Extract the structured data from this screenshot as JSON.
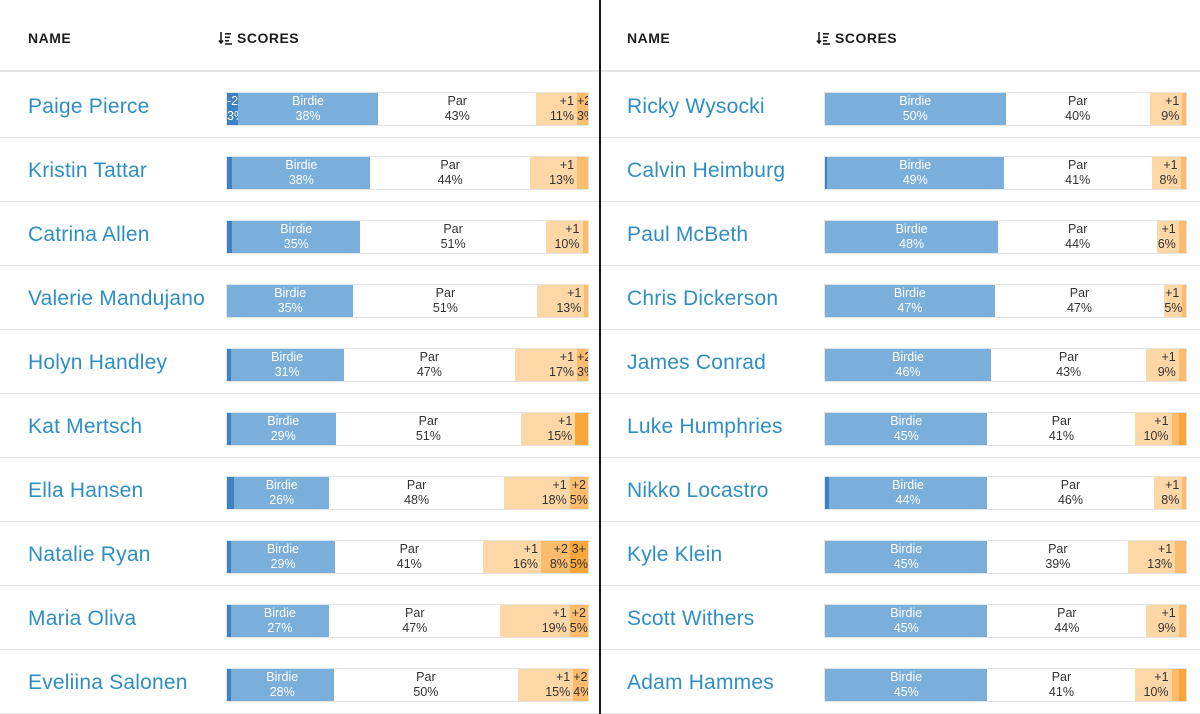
{
  "columns": {
    "name": "NAME",
    "scores": "SCORES"
  },
  "colors": {
    "name": "#2f8fc5",
    "eagle": "#3f82c4",
    "birdie": "#7aaedb",
    "par": "#ffffff",
    "bogey": "#fdd7a6",
    "double": "#fbbd6d",
    "triple": "#f9a73a"
  },
  "panels": [
    {
      "rows": [
        {
          "name": "Paige Pierce",
          "segs": [
            {
              "k": "eagle",
              "l1": "-2",
              "l2": "3%",
              "v": 3
            },
            {
              "k": "birdie",
              "l1": "Birdie",
              "l2": "38%",
              "v": 38
            },
            {
              "k": "par",
              "l1": "Par",
              "l2": "43%",
              "v": 43
            },
            {
              "k": "bogey",
              "l1": "+1",
              "l2": "11%",
              "v": 11
            },
            {
              "k": "dbl",
              "l1": "+2",
              "l2": "3%",
              "v": 3
            }
          ]
        },
        {
          "name": "Kristin Tattar",
          "segs": [
            {
              "k": "eagle",
              "l1": "",
              "l2": "",
              "v": 1.5
            },
            {
              "k": "birdie",
              "l1": "Birdie",
              "l2": "38%",
              "v": 38
            },
            {
              "k": "par",
              "l1": "Par",
              "l2": "44%",
              "v": 44
            },
            {
              "k": "bogey",
              "l1": "+1",
              "l2": "13%",
              "v": 13
            },
            {
              "k": "dbl",
              "l1": "",
              "l2": "",
              "v": 3
            }
          ]
        },
        {
          "name": "Catrina Allen",
          "segs": [
            {
              "k": "eagle",
              "l1": "",
              "l2": "",
              "v": 1.5
            },
            {
              "k": "birdie",
              "l1": "Birdie",
              "l2": "35%",
              "v": 35
            },
            {
              "k": "par",
              "l1": "Par",
              "l2": "51%",
              "v": 51
            },
            {
              "k": "bogey",
              "l1": "+1",
              "l2": "10%",
              "v": 10
            },
            {
              "k": "dbl",
              "l1": "",
              "l2": "",
              "v": 1.5
            }
          ]
        },
        {
          "name": "Valerie Mandujano",
          "segs": [
            {
              "k": "birdie",
              "l1": "Birdie",
              "l2": "35%",
              "v": 35
            },
            {
              "k": "par",
              "l1": "Par",
              "l2": "51%",
              "v": 51
            },
            {
              "k": "bogey",
              "l1": "+1",
              "l2": "13%",
              "v": 13
            },
            {
              "k": "dbl",
              "l1": "",
              "l2": "",
              "v": 1
            }
          ]
        },
        {
          "name": "Holyn Handley",
          "segs": [
            {
              "k": "eagle",
              "l1": "",
              "l2": "",
              "v": 1
            },
            {
              "k": "birdie",
              "l1": "Birdie",
              "l2": "31%",
              "v": 31
            },
            {
              "k": "par",
              "l1": "Par",
              "l2": "47%",
              "v": 47
            },
            {
              "k": "bogey",
              "l1": "+1",
              "l2": "17%",
              "v": 17
            },
            {
              "k": "dbl",
              "l1": "+2",
              "l2": "3%",
              "v": 3
            }
          ]
        },
        {
          "name": "Kat Mertsch",
          "segs": [
            {
              "k": "eagle",
              "l1": "",
              "l2": "",
              "v": 1
            },
            {
              "k": "birdie",
              "l1": "Birdie",
              "l2": "29%",
              "v": 29
            },
            {
              "k": "par",
              "l1": "Par",
              "l2": "51%",
              "v": 51
            },
            {
              "k": "bogey",
              "l1": "+1",
              "l2": "15%",
              "v": 15
            },
            {
              "k": "trip",
              "l1": "",
              "l2": "",
              "v": 3.5
            }
          ]
        },
        {
          "name": "Ella Hansen",
          "segs": [
            {
              "k": "eagle",
              "l1": "",
              "l2": "",
              "v": 2
            },
            {
              "k": "birdie",
              "l1": "Birdie",
              "l2": "26%",
              "v": 26
            },
            {
              "k": "par",
              "l1": "Par",
              "l2": "48%",
              "v": 48
            },
            {
              "k": "bogey",
              "l1": "+1",
              "l2": "18%",
              "v": 18
            },
            {
              "k": "dbl",
              "l1": "+2",
              "l2": "5%",
              "v": 5
            }
          ]
        },
        {
          "name": "Natalie Ryan",
          "segs": [
            {
              "k": "eagle",
              "l1": "",
              "l2": "",
              "v": 1
            },
            {
              "k": "birdie",
              "l1": "Birdie",
              "l2": "29%",
              "v": 29
            },
            {
              "k": "par",
              "l1": "Par",
              "l2": "41%",
              "v": 41
            },
            {
              "k": "bogey",
              "l1": "+1",
              "l2": "16%",
              "v": 16
            },
            {
              "k": "dbl",
              "l1": "+2",
              "l2": "8%",
              "v": 8
            },
            {
              "k": "trip",
              "l1": "3+",
              "l2": "5%",
              "v": 5
            }
          ]
        },
        {
          "name": "Maria Oliva",
          "segs": [
            {
              "k": "eagle",
              "l1": "",
              "l2": "",
              "v": 1
            },
            {
              "k": "birdie",
              "l1": "Birdie",
              "l2": "27%",
              "v": 27
            },
            {
              "k": "par",
              "l1": "Par",
              "l2": "47%",
              "v": 47
            },
            {
              "k": "bogey",
              "l1": "+1",
              "l2": "19%",
              "v": 19
            },
            {
              "k": "dbl",
              "l1": "+2",
              "l2": "5%",
              "v": 5
            }
          ]
        },
        {
          "name": "Eveliina Salonen",
          "segs": [
            {
              "k": "eagle",
              "l1": "",
              "l2": "",
              "v": 1
            },
            {
              "k": "birdie",
              "l1": "Birdie",
              "l2": "28%",
              "v": 28
            },
            {
              "k": "par",
              "l1": "Par",
              "l2": "50%",
              "v": 50
            },
            {
              "k": "bogey",
              "l1": "+1",
              "l2": "15%",
              "v": 15
            },
            {
              "k": "dbl",
              "l1": "+2",
              "l2": "4%",
              "v": 4
            }
          ]
        }
      ]
    },
    {
      "rows": [
        {
          "name": "Ricky Wysocki",
          "segs": [
            {
              "k": "birdie",
              "l1": "Birdie",
              "l2": "50%",
              "v": 50
            },
            {
              "k": "par",
              "l1": "Par",
              "l2": "40%",
              "v": 40
            },
            {
              "k": "bogey",
              "l1": "+1",
              "l2": "9%",
              "v": 9
            },
            {
              "k": "dbl",
              "l1": "",
              "l2": "",
              "v": 1
            }
          ]
        },
        {
          "name": "Calvin Heimburg",
          "segs": [
            {
              "k": "eagle",
              "l1": "",
              "l2": "",
              "v": 0.5
            },
            {
              "k": "birdie",
              "l1": "Birdie",
              "l2": "49%",
              "v": 49
            },
            {
              "k": "par",
              "l1": "Par",
              "l2": "41%",
              "v": 41
            },
            {
              "k": "bogey",
              "l1": "+1",
              "l2": "8%",
              "v": 8
            },
            {
              "k": "dbl",
              "l1": "",
              "l2": "",
              "v": 1.5
            }
          ]
        },
        {
          "name": "Paul McBeth",
          "segs": [
            {
              "k": "birdie",
              "l1": "Birdie",
              "l2": "48%",
              "v": 48
            },
            {
              "k": "par",
              "l1": "Par",
              "l2": "44%",
              "v": 44
            },
            {
              "k": "bogey",
              "l1": "+1",
              "l2": "6%",
              "v": 6
            },
            {
              "k": "dbl",
              "l1": "",
              "l2": "",
              "v": 2
            }
          ]
        },
        {
          "name": "Chris Dickerson",
          "segs": [
            {
              "k": "birdie",
              "l1": "Birdie",
              "l2": "47%",
              "v": 47
            },
            {
              "k": "par",
              "l1": "Par",
              "l2": "47%",
              "v": 47
            },
            {
              "k": "bogey",
              "l1": "+1",
              "l2": "5%",
              "v": 5
            },
            {
              "k": "dbl",
              "l1": "",
              "l2": "",
              "v": 1
            }
          ]
        },
        {
          "name": "James Conrad",
          "segs": [
            {
              "k": "birdie",
              "l1": "Birdie",
              "l2": "46%",
              "v": 46
            },
            {
              "k": "par",
              "l1": "Par",
              "l2": "43%",
              "v": 43
            },
            {
              "k": "bogey",
              "l1": "+1",
              "l2": "9%",
              "v": 9
            },
            {
              "k": "dbl",
              "l1": "",
              "l2": "",
              "v": 2
            }
          ]
        },
        {
          "name": "Luke Humphries",
          "segs": [
            {
              "k": "birdie",
              "l1": "Birdie",
              "l2": "45%",
              "v": 45
            },
            {
              "k": "par",
              "l1": "Par",
              "l2": "41%",
              "v": 41
            },
            {
              "k": "bogey",
              "l1": "+1",
              "l2": "10%",
              "v": 10
            },
            {
              "k": "dbl",
              "l1": "",
              "l2": "",
              "v": 2
            },
            {
              "k": "trip",
              "l1": "",
              "l2": "",
              "v": 2
            }
          ]
        },
        {
          "name": "Nikko Locastro",
          "segs": [
            {
              "k": "eagle",
              "l1": "",
              "l2": "",
              "v": 1
            },
            {
              "k": "birdie",
              "l1": "Birdie",
              "l2": "44%",
              "v": 44
            },
            {
              "k": "par",
              "l1": "Par",
              "l2": "46%",
              "v": 46
            },
            {
              "k": "bogey",
              "l1": "+1",
              "l2": "8%",
              "v": 8
            },
            {
              "k": "dbl",
              "l1": "",
              "l2": "",
              "v": 1
            }
          ]
        },
        {
          "name": "Kyle Klein",
          "segs": [
            {
              "k": "birdie",
              "l1": "Birdie",
              "l2": "45%",
              "v": 45
            },
            {
              "k": "par",
              "l1": "Par",
              "l2": "39%",
              "v": 39
            },
            {
              "k": "bogey",
              "l1": "+1",
              "l2": "13%",
              "v": 13
            },
            {
              "k": "dbl",
              "l1": "",
              "l2": "",
              "v": 3
            }
          ]
        },
        {
          "name": "Scott Withers",
          "segs": [
            {
              "k": "birdie",
              "l1": "Birdie",
              "l2": "45%",
              "v": 45
            },
            {
              "k": "par",
              "l1": "Par",
              "l2": "44%",
              "v": 44
            },
            {
              "k": "bogey",
              "l1": "+1",
              "l2": "9%",
              "v": 9
            },
            {
              "k": "dbl",
              "l1": "",
              "l2": "",
              "v": 2
            }
          ]
        },
        {
          "name": "Adam Hammes",
          "segs": [
            {
              "k": "birdie",
              "l1": "Birdie",
              "l2": "45%",
              "v": 45
            },
            {
              "k": "par",
              "l1": "Par",
              "l2": "41%",
              "v": 41
            },
            {
              "k": "bogey",
              "l1": "+1",
              "l2": "10%",
              "v": 10
            },
            {
              "k": "dbl",
              "l1": "",
              "l2": "",
              "v": 2
            },
            {
              "k": "trip",
              "l1": "",
              "l2": "",
              "v": 2
            }
          ]
        }
      ]
    }
  ]
}
